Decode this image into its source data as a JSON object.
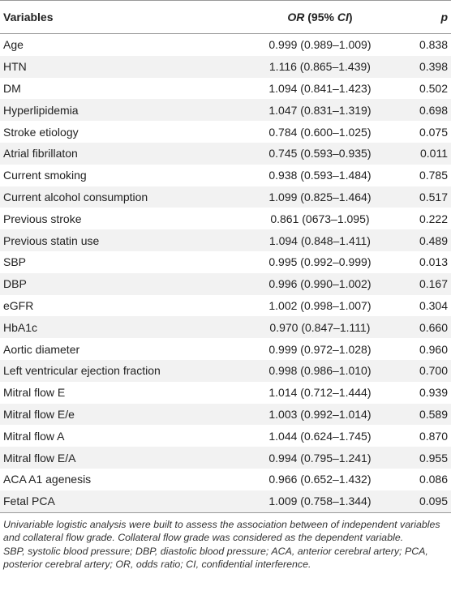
{
  "table": {
    "header": [
      "Variables",
      {
        "parts": [
          "OR",
          " (95% ",
          "CI",
          ")"
        ]
      },
      "p"
    ],
    "rows": [
      [
        "Age",
        "0.999 (0.989–1.009)",
        "0.838"
      ],
      [
        "HTN",
        "1.116 (0.865–1.439)",
        "0.398"
      ],
      [
        "DM",
        "1.094 (0.841–1.423)",
        "0.502"
      ],
      [
        "Hyperlipidemia",
        "1.047 (0.831–1.319)",
        "0.698"
      ],
      [
        "Stroke etiology",
        "0.784 (0.600–1.025)",
        "0.075"
      ],
      [
        "Atrial fibrillaton",
        "0.745 (0.593–0.935)",
        "0.011"
      ],
      [
        "Current smoking",
        "0.938 (0.593–1.484)",
        "0.785"
      ],
      [
        "Current alcohol consumption",
        "1.099 (0.825–1.464)",
        "0.517"
      ],
      [
        "Previous stroke",
        "0.861 (0673–1.095)",
        "0.222"
      ],
      [
        "Previous statin use",
        "1.094 (0.848–1.411)",
        "0.489"
      ],
      [
        "SBP",
        "0.995 (0.992–0.999)",
        "0.013"
      ],
      [
        "DBP",
        "0.996 (0.990–1.002)",
        "0.167"
      ],
      [
        "eGFR",
        "1.002 (0.998–1.007)",
        "0.304"
      ],
      [
        "HbA1c",
        "0.970 (0.847–1.111)",
        "0.660"
      ],
      [
        "Aortic diameter",
        "0.999 (0.972–1.028)",
        "0.960"
      ],
      [
        "Left ventricular ejection fraction",
        "0.998 (0.986–1.010)",
        "0.700"
      ],
      [
        "Mitral flow E",
        "1.014 (0.712–1.444)",
        "0.939"
      ],
      [
        "Mitral flow E/e",
        "1.003 (0.992–1.014)",
        "0.589"
      ],
      [
        "Mitral flow A",
        "1.044 (0.624–1.745)",
        "0.870"
      ],
      [
        "Mitral flow E/A",
        "0.994 (0.795–1.241)",
        "0.955"
      ],
      [
        "ACA A1 agenesis",
        "0.966 (0.652–1.432)",
        "0.086"
      ],
      [
        "Fetal PCA",
        "1.009 (0.758–1.344)",
        "0.095"
      ]
    ]
  },
  "footnotes": [
    "Univariable logistic analysis were built to assess the association between of independent variables and collateral flow grade. Collateral flow grade was considered as the dependent variable.",
    "SBP, systolic blood pressure; DBP, diastolic blood pressure; ACA, anterior cerebral artery; PCA, posterior cerebral artery; OR, odds ratio; CI, confidential interference."
  ]
}
